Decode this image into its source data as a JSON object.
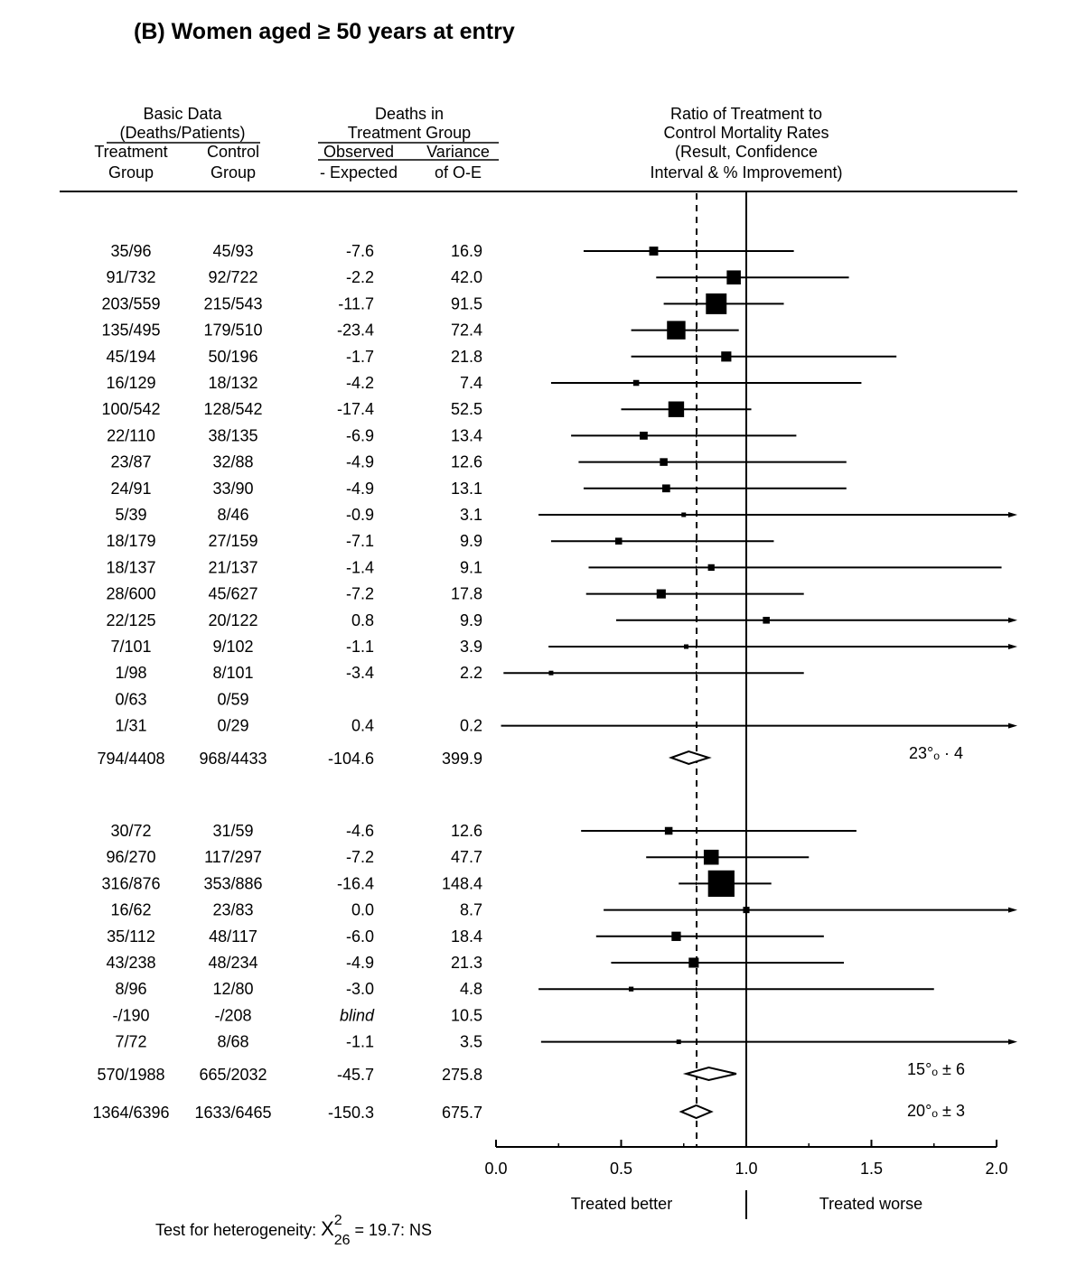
{
  "title": "(B) Women aged ≥ 50 years at entry",
  "headers": {
    "basic_data": [
      "Basic Data",
      "(Deaths/Patients)"
    ],
    "treatment_group": [
      "Treatment",
      "Group"
    ],
    "control_group": [
      "Control",
      "Group"
    ],
    "deaths_in": [
      "Deaths in",
      "Treatment Group"
    ],
    "observed_expected": [
      "Observed",
      "- Expected"
    ],
    "variance": [
      "Variance",
      "of O-E"
    ],
    "ratio": [
      "Ratio of Treatment to",
      "Control Mortality Rates",
      "(Result, Confidence",
      "Interval & % Improvement)"
    ]
  },
  "footer": {
    "treated_better": "Treated better",
    "treated_worse": "Treated worse",
    "heterogeneity_prefix": "Test for heterogeneity: ",
    "chi_symbol": "X",
    "chi_sup": "2",
    "chi_sub": "26",
    "heterogeneity_suffix": " = 19.7: NS"
  },
  "chart_data": {
    "type": "forest",
    "xaxis": {
      "ticks": [
        "0.0",
        "0.5",
        "1.0",
        "1.5",
        "2.0"
      ],
      "range": [
        0,
        2
      ],
      "reference_line": 1.0,
      "pooled_dashed_line": 0.8
    },
    "groups": [
      {
        "rows": [
          {
            "treatment": "35/96",
            "control": "45/93",
            "oe": "-7.6",
            "var": "16.9",
            "ratio": 0.63,
            "lo": 0.35,
            "hi": 1.19
          },
          {
            "treatment": "91/732",
            "control": "92/722",
            "oe": "-2.2",
            "var": "42.0",
            "ratio": 0.95,
            "lo": 0.64,
            "hi": 1.41
          },
          {
            "treatment": "203/559",
            "control": "215/543",
            "oe": "-11.7",
            "var": "91.5",
            "ratio": 0.88,
            "lo": 0.67,
            "hi": 1.15
          },
          {
            "treatment": "135/495",
            "control": "179/510",
            "oe": "-23.4",
            "var": "72.4",
            "ratio": 0.72,
            "lo": 0.54,
            "hi": 0.97
          },
          {
            "treatment": "45/194",
            "control": "50/196",
            "oe": "-1.7",
            "var": "21.8",
            "ratio": 0.92,
            "lo": 0.54,
            "hi": 1.6
          },
          {
            "treatment": "16/129",
            "control": "18/132",
            "oe": "-4.2",
            "var": "7.4",
            "ratio": 0.56,
            "lo": 0.22,
            "hi": 1.46
          },
          {
            "treatment": "100/542",
            "control": "128/542",
            "oe": "-17.4",
            "var": "52.5",
            "ratio": 0.72,
            "lo": 0.5,
            "hi": 1.02
          },
          {
            "treatment": "22/110",
            "control": "38/135",
            "oe": "-6.9",
            "var": "13.4",
            "ratio": 0.59,
            "lo": 0.3,
            "hi": 1.2
          },
          {
            "treatment": "23/87",
            "control": "32/88",
            "oe": "-4.9",
            "var": "12.6",
            "ratio": 0.67,
            "lo": 0.33,
            "hi": 1.4
          },
          {
            "treatment": "24/91",
            "control": "33/90",
            "oe": "-4.9",
            "var": "13.1",
            "ratio": 0.68,
            "lo": 0.35,
            "hi": 1.4
          },
          {
            "treatment": "5/39",
            "control": "8/46",
            "oe": "-0.9",
            "var": "3.1",
            "ratio": 0.75,
            "lo": 0.17,
            "hi": 2.0,
            "arrow": true
          },
          {
            "treatment": "18/179",
            "control": "27/159",
            "oe": "-7.1",
            "var": "9.9",
            "ratio": 0.49,
            "lo": 0.22,
            "hi": 1.11
          },
          {
            "treatment": "18/137",
            "control": "21/137",
            "oe": "-1.4",
            "var": "9.1",
            "ratio": 0.86,
            "lo": 0.37,
            "hi": 2.02
          },
          {
            "treatment": "28/600",
            "control": "45/627",
            "oe": "-7.2",
            "var": "17.8",
            "ratio": 0.66,
            "lo": 0.36,
            "hi": 1.23
          },
          {
            "treatment": "22/125",
            "control": "20/122",
            "oe": "0.8",
            "var": "9.9",
            "ratio": 1.08,
            "lo": 0.48,
            "hi": 2.0,
            "arrow": true
          },
          {
            "treatment": "7/101",
            "control": "9/102",
            "oe": "-1.1",
            "var": "3.9",
            "ratio": 0.76,
            "lo": 0.21,
            "hi": 2.0,
            "arrow": true
          },
          {
            "treatment": "1/98",
            "control": "8/101",
            "oe": "-3.4",
            "var": "2.2",
            "ratio": 0.22,
            "lo": 0.03,
            "hi": 1.23
          },
          {
            "treatment": "0/63",
            "control": "0/59",
            "oe": "",
            "var": ""
          },
          {
            "treatment": "1/31",
            "control": "0/29",
            "oe": "0.4",
            "var": "0.2",
            "lo": 0.02,
            "hi": 2.0,
            "arrow": true
          }
        ],
        "subtotal": {
          "treatment": "794/4408",
          "control": "968/4433",
          "oe": "-104.6",
          "var": "399.9",
          "ratio": 0.77,
          "lo": 0.7,
          "hi": 0.85,
          "label": "23°ₒ · 4"
        }
      },
      {
        "rows": [
          {
            "treatment": "30/72",
            "control": "31/59",
            "oe": "-4.6",
            "var": "12.6",
            "ratio": 0.69,
            "lo": 0.34,
            "hi": 1.44
          },
          {
            "treatment": "96/270",
            "control": "117/297",
            "oe": "-7.2",
            "var": "47.7",
            "ratio": 0.86,
            "lo": 0.6,
            "hi": 1.25
          },
          {
            "treatment": "316/876",
            "control": "353/886",
            "oe": "-16.4",
            "var": "148.4",
            "ratio": 0.9,
            "lo": 0.73,
            "hi": 1.1
          },
          {
            "treatment": "16/62",
            "control": "23/83",
            "oe": "0.0",
            "var": "8.7",
            "ratio": 1.0,
            "lo": 0.43,
            "hi": 2.0,
            "arrow": true
          },
          {
            "treatment": "35/112",
            "control": "48/117",
            "oe": "-6.0",
            "var": "18.4",
            "ratio": 0.72,
            "lo": 0.4,
            "hi": 1.31
          },
          {
            "treatment": "43/238",
            "control": "48/234",
            "oe": "-4.9",
            "var": "21.3",
            "ratio": 0.79,
            "lo": 0.46,
            "hi": 1.39
          },
          {
            "treatment": "8/96",
            "control": "12/80",
            "oe": "-3.0",
            "var": "4.8",
            "ratio": 0.54,
            "lo": 0.17,
            "hi": 1.75
          },
          {
            "treatment": "-/190",
            "control": "-/208",
            "oe": "blind",
            "var": "10.5",
            "italic": true
          },
          {
            "treatment": "7/72",
            "control": "8/68",
            "oe": "-1.1",
            "var": "3.5",
            "ratio": 0.73,
            "lo": 0.18,
            "hi": 2.0,
            "arrow": true
          }
        ],
        "subtotal": {
          "treatment": "570/1988",
          "control": "665/2032",
          "oe": "-45.7",
          "var": "275.8",
          "ratio": 0.85,
          "lo": 0.76,
          "hi": 0.96,
          "label": "15°ₒ ± 6"
        }
      }
    ],
    "total": {
      "treatment": "1364/6396",
      "control": "1633/6465",
      "oe": "-150.3",
      "var": "675.7",
      "ratio": 0.8,
      "lo": 0.74,
      "hi": 0.86,
      "label": "20°ₒ ± 3"
    }
  }
}
